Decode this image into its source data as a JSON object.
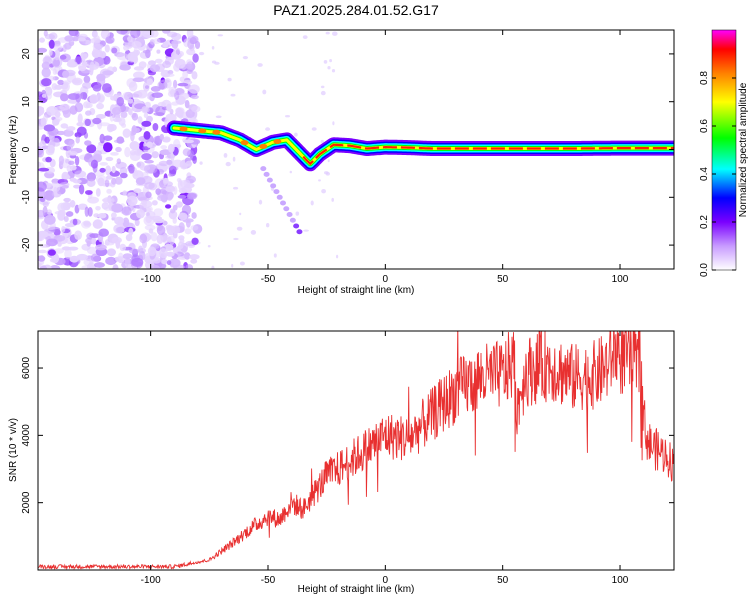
{
  "title": "PAZ1.2025.284.01.52.G17",
  "chart_data": [
    {
      "type": "heatmap",
      "xlabel": "Height of straight line (km)",
      "ylabel": "Frequency (Hz)",
      "xlim": [
        -148,
        123
      ],
      "ylim": [
        -25,
        25
      ],
      "x_ticks": [
        -100,
        -50,
        0,
        50,
        100
      ],
      "y_ticks": [
        -20,
        -10,
        0,
        10,
        20
      ],
      "colorbar": {
        "label": "Normalized spectral amplitude",
        "range": [
          0,
          1
        ],
        "ticks": [
          0.0,
          0.2,
          0.4,
          0.6,
          0.8
        ],
        "tick_labels": [
          "0.0",
          "0.2",
          "0.4",
          "0.6",
          "0.8"
        ],
        "colors": [
          "#ffffff",
          "#7a00ff",
          "#0000ff",
          "#00ffff",
          "#00ff00",
          "#ffff00",
          "#ff8000",
          "#ff0000",
          "#ff00ff"
        ]
      },
      "ridge": {
        "x": [
          -90,
          -80,
          -70,
          -62,
          -55,
          -48,
          -42,
          -36,
          -32,
          -28,
          -22,
          -15,
          -8,
          0,
          10,
          20,
          40,
          60,
          80,
          100,
          123
        ],
        "y": [
          4.5,
          4,
          3.5,
          2,
          0,
          1.5,
          2,
          -1,
          -3,
          -1,
          1,
          0.8,
          0.2,
          0.5,
          0.4,
          0.2,
          0.2,
          0.2,
          0.2,
          0.3,
          0.3
        ]
      },
      "noise_region": {
        "x": [
          -148,
          -80
        ],
        "y": [
          -25,
          25
        ]
      }
    },
    {
      "type": "line",
      "xlabel": "Height of straight line (km)",
      "ylabel": "SNR (10 * v/v)",
      "xlim": [
        -148,
        123
      ],
      "ylim": [
        0,
        7100
      ],
      "x_ticks": [
        -100,
        -50,
        0,
        50,
        100
      ],
      "y_ticks": [
        2000,
        4000,
        6000
      ],
      "color": "#e83030",
      "envelope": {
        "x": [
          -148,
          -120,
          -90,
          -75,
          -65,
          -58,
          -50,
          -45,
          -40,
          -35,
          -30,
          -25,
          -20,
          -10,
          0,
          10,
          20,
          30,
          40,
          50,
          55,
          56,
          60,
          70,
          80,
          90,
          95,
          98,
          100,
          105,
          109,
          110,
          112,
          115,
          120,
          123
        ],
        "y": [
          100,
          100,
          100,
          300,
          800,
          1200,
          1600,
          1500,
          2000,
          1800,
          2300,
          2800,
          3000,
          3500,
          4000,
          3900,
          4600,
          5300,
          5700,
          5800,
          6200,
          4800,
          5900,
          6100,
          5700,
          5800,
          6100,
          6600,
          6300,
          6300,
          6000,
          4500,
          3800,
          3600,
          3400,
          3100
        ]
      }
    }
  ]
}
